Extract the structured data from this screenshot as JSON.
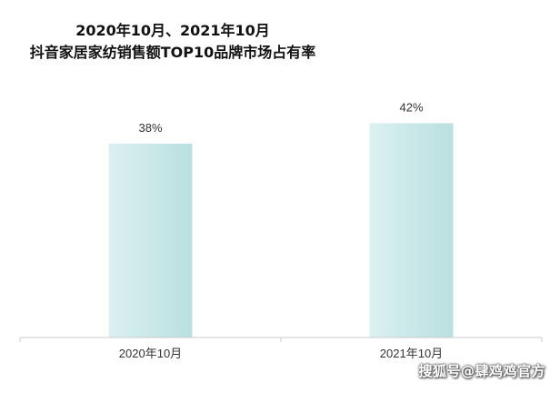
{
  "chart_data": {
    "type": "bar",
    "title": "2020年10月、2021年10月",
    "subtitle": "抖音家居家纺销售额TOP10品牌市场占有率",
    "categories": [
      "2020年10月",
      "2021年10月"
    ],
    "values": [
      38,
      42
    ],
    "value_labels": [
      "38%",
      "42%"
    ],
    "ylim": [
      0,
      46
    ],
    "xlabel": "",
    "ylabel": "",
    "grid": false,
    "legend": "none",
    "colors": {
      "bar_start": "#dcf0f1",
      "bar_end": "#b9e0df",
      "axis": "#cccccc"
    }
  },
  "watermark": "搜狐号@肆鸡鸡官方"
}
